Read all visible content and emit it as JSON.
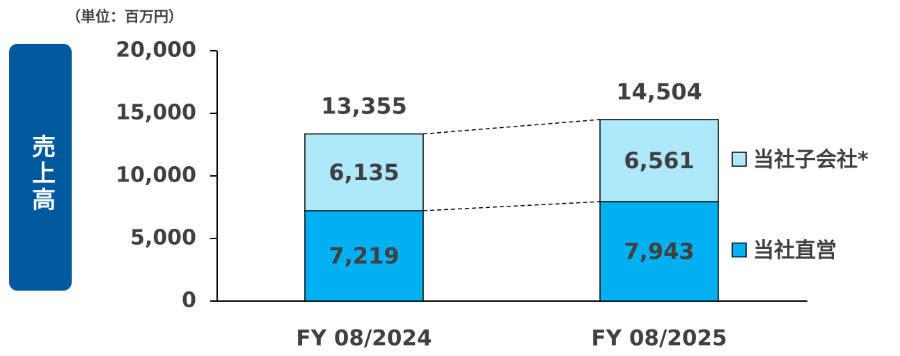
{
  "chart_data": {
    "type": "stacked_bar",
    "unit_label": "（単位：百万円）",
    "side_label": "売上高",
    "categories": [
      "FY 08/2024",
      "FY 08/2025"
    ],
    "series": [
      {
        "name": "当社直営",
        "color": "#00b0f0",
        "values": [
          7219,
          7943
        ],
        "value_labels": [
          "7,219",
          "7,943"
        ]
      },
      {
        "name": "当社子会社*",
        "color": "#aee8fb",
        "values": [
          6135,
          6561
        ],
        "value_labels": [
          "6,135",
          "6,561"
        ]
      }
    ],
    "totals": {
      "values": [
        13355,
        14504
      ],
      "value_labels": [
        "13,355",
        "14,504"
      ]
    },
    "ylim": [
      0,
      20000
    ],
    "yticks": [
      0,
      {
        "value": 5000,
        "label": "5,000"
      },
      {
        "value": 10000,
        "label": "10,000"
      },
      {
        "value": 15000,
        "label": "15,000"
      },
      {
        "value": 20000,
        "label": "20,000"
      }
    ]
  }
}
